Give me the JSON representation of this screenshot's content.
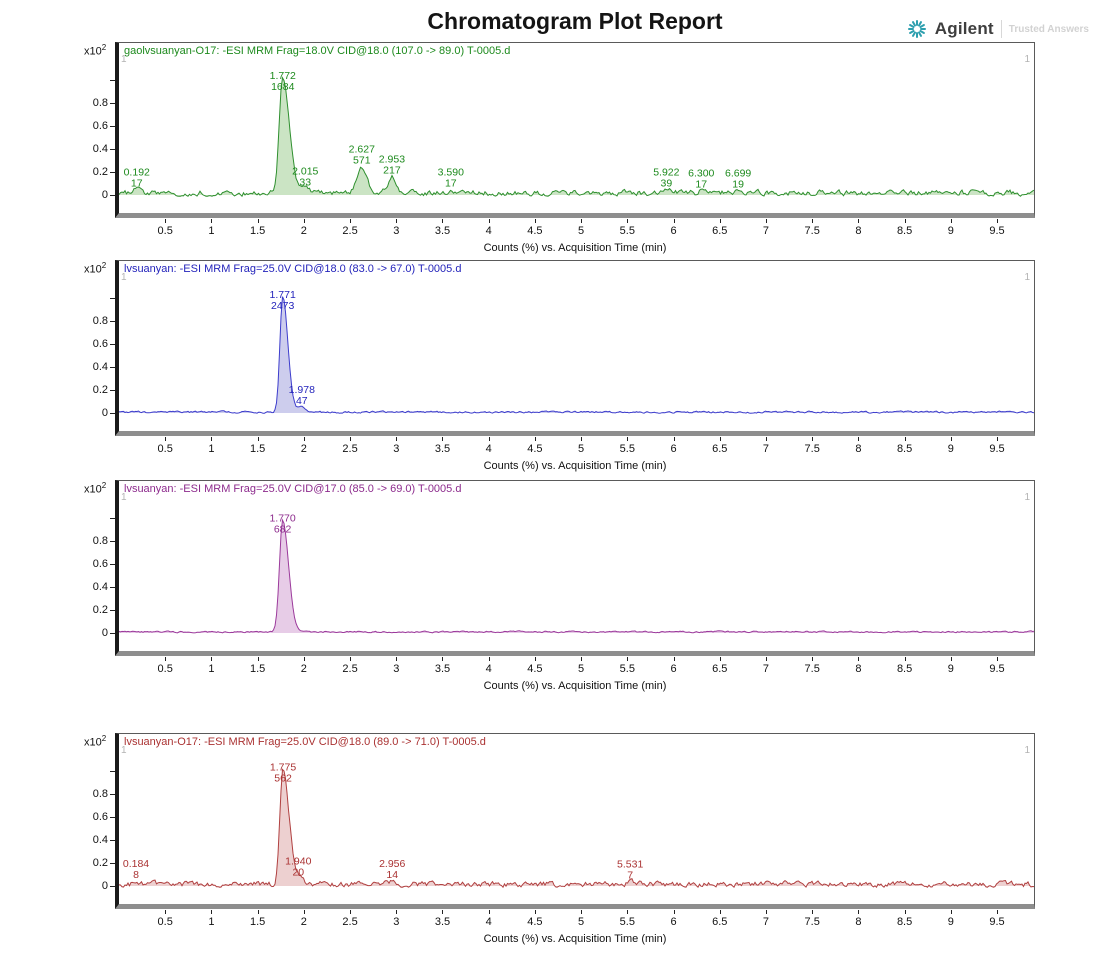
{
  "report": {
    "title": "Chromatogram Plot Report"
  },
  "logo": {
    "brand": "Agilent",
    "tagline": "Trusted Answers"
  },
  "chart_data": [
    {
      "type": "area",
      "title": "gaolvsuanyan-O17: -ESI MRM Frag=18.0V CID@18.0 (107.0 -> 89.0) T-0005.d",
      "xlabel": "Counts (%) vs. Acquisition Time (min)",
      "y_scale": {
        "mant": "x10",
        "exp": "2"
      },
      "corner_marker": "1",
      "xlim": [
        0,
        9.9
      ],
      "ylim": [
        0,
        1.08
      ],
      "grid": false,
      "x_tick_labels": [
        "0.5",
        "1",
        "1.5",
        "2",
        "2.5",
        "3",
        "3.5",
        "4",
        "4.5",
        "5",
        "5.5",
        "6",
        "6.5",
        "7",
        "7.5",
        "8",
        "8.5",
        "9",
        "9.5"
      ],
      "y_tick_labels": [
        "0",
        "0.2",
        "0.4",
        "0.6",
        "0.8"
      ],
      "colors": {
        "stroke": "#2e8f2e",
        "fill": "#b5d9ab",
        "label": "#1d8a1d"
      },
      "noise_amplitude": 0.045,
      "baseline": 0.018,
      "seed": 1,
      "peaks": [
        {
          "rt": "0.192",
          "counts": "17",
          "t": 0.192,
          "height_frac": 0.03,
          "width_min": 0.07
        },
        {
          "rt": "1.772",
          "counts": "1684",
          "t": 1.772,
          "height_frac": 1.0,
          "width_min": 0.09
        },
        {
          "rt": "2.015",
          "counts": "33",
          "t": 2.015,
          "height_frac": 0.04,
          "width_min": 0.08
        },
        {
          "rt": "2.627",
          "counts": "571",
          "t": 2.627,
          "height_frac": 0.23,
          "width_min": 0.13
        },
        {
          "rt": "2.953",
          "counts": "217",
          "t": 2.953,
          "height_frac": 0.145,
          "width_min": 0.1
        },
        {
          "rt": "3.590",
          "counts": "17",
          "t": 3.59,
          "height_frac": 0.028,
          "width_min": 0.07
        },
        {
          "rt": "5.922",
          "counts": "39",
          "t": 5.922,
          "height_frac": 0.03,
          "width_min": 0.09
        },
        {
          "rt": "6.300",
          "counts": "17",
          "t": 6.3,
          "height_frac": 0.022,
          "width_min": 0.07
        },
        {
          "rt": "6.699",
          "counts": "19",
          "t": 6.699,
          "height_frac": 0.022,
          "width_min": 0.07
        }
      ]
    },
    {
      "type": "area",
      "title": "lvsuanyan: -ESI MRM Frag=25.0V CID@18.0 (83.0 -> 67.0) T-0005.d",
      "xlabel": "Counts (%) vs. Acquisition Time (min)",
      "y_scale": {
        "mant": "x10",
        "exp": "2"
      },
      "corner_marker": "1",
      "xlim": [
        0,
        9.9
      ],
      "ylim": [
        0,
        1.08
      ],
      "grid": false,
      "x_tick_labels": [
        "0.5",
        "1",
        "1.5",
        "2",
        "2.5",
        "3",
        "3.5",
        "4",
        "4.5",
        "5",
        "5.5",
        "6",
        "6.5",
        "7",
        "7.5",
        "8",
        "8.5",
        "9",
        "9.5"
      ],
      "y_tick_labels": [
        "0",
        "0.2",
        "0.4",
        "0.6",
        "0.8"
      ],
      "colors": {
        "stroke": "#3c3ccc",
        "fill": "#b8b8e6",
        "label": "#2424bb"
      },
      "noise_amplitude": 0.015,
      "baseline": 0.008,
      "seed": 2,
      "peaks": [
        {
          "rt": "1.771",
          "counts": "2473",
          "t": 1.771,
          "height_frac": 1.0,
          "width_min": 0.07
        },
        {
          "rt": "1.978",
          "counts": "47",
          "t": 1.978,
          "height_frac": 0.045,
          "width_min": 0.1
        }
      ]
    },
    {
      "type": "area",
      "title": "lvsuanyan: -ESI MRM Frag=25.0V CID@17.0 (85.0 -> 69.0) T-0005.d",
      "xlabel": "Counts (%) vs. Acquisition Time (min)",
      "y_scale": {
        "mant": "x10",
        "exp": "2"
      },
      "corner_marker": "1",
      "xlim": [
        0,
        9.9
      ],
      "ylim": [
        0,
        1.08
      ],
      "grid": false,
      "x_tick_labels": [
        "0.5",
        "1",
        "1.5",
        "2",
        "2.5",
        "3",
        "3.5",
        "4",
        "4.5",
        "5",
        "5.5",
        "6",
        "6.5",
        "7",
        "7.5",
        "8",
        "8.5",
        "9",
        "9.5"
      ],
      "y_tick_labels": [
        "0",
        "0.2",
        "0.4",
        "0.6",
        "0.8"
      ],
      "colors": {
        "stroke": "#9b399b",
        "fill": "#ddb6dd",
        "label": "#8d2b8d"
      },
      "noise_amplitude": 0.012,
      "baseline": 0.01,
      "seed": 3,
      "peaks": [
        {
          "rt": "1.770",
          "counts": "682",
          "t": 1.77,
          "height_frac": 0.97,
          "width_min": 0.08
        }
      ]
    },
    {
      "type": "area",
      "title": "lvsuanyan-O17: -ESI MRM Frag=25.0V CID@18.0 (89.0 -> 71.0) T-0005.d",
      "xlabel": "Counts (%) vs. Acquisition Time (min)",
      "y_scale": {
        "mant": "x10",
        "exp": "2"
      },
      "corner_marker": "1",
      "xlim": [
        0,
        9.9
      ],
      "ylim": [
        0,
        1.08
      ],
      "grid": false,
      "x_tick_labels": [
        "0.5",
        "1",
        "1.5",
        "2",
        "2.5",
        "3",
        "3.5",
        "4",
        "4.5",
        "5",
        "5.5",
        "6",
        "6.5",
        "7",
        "7.5",
        "8",
        "8.5",
        "9",
        "9.5"
      ],
      "y_tick_labels": [
        "0",
        "0.2",
        "0.4",
        "0.6",
        "0.8"
      ],
      "colors": {
        "stroke": "#b04040",
        "fill": "#e6bcbc",
        "label": "#aa3232"
      },
      "noise_amplitude": 0.045,
      "baseline": 0.015,
      "seed": 4,
      "peaks": [
        {
          "rt": "0.184",
          "counts": "8",
          "t": 0.184,
          "height_frac": 0.03,
          "width_min": 0.06
        },
        {
          "rt": "1.775",
          "counts": "562",
          "t": 1.775,
          "height_frac": 1.0,
          "width_min": 0.08
        },
        {
          "rt": "1.940",
          "counts": "20",
          "t": 1.94,
          "height_frac": 0.05,
          "width_min": 0.11
        },
        {
          "rt": "2.956",
          "counts": "14",
          "t": 2.956,
          "height_frac": 0.03,
          "width_min": 0.08
        },
        {
          "rt": "5.531",
          "counts": "7",
          "t": 5.531,
          "height_frac": 0.025,
          "width_min": 0.07
        }
      ]
    }
  ]
}
